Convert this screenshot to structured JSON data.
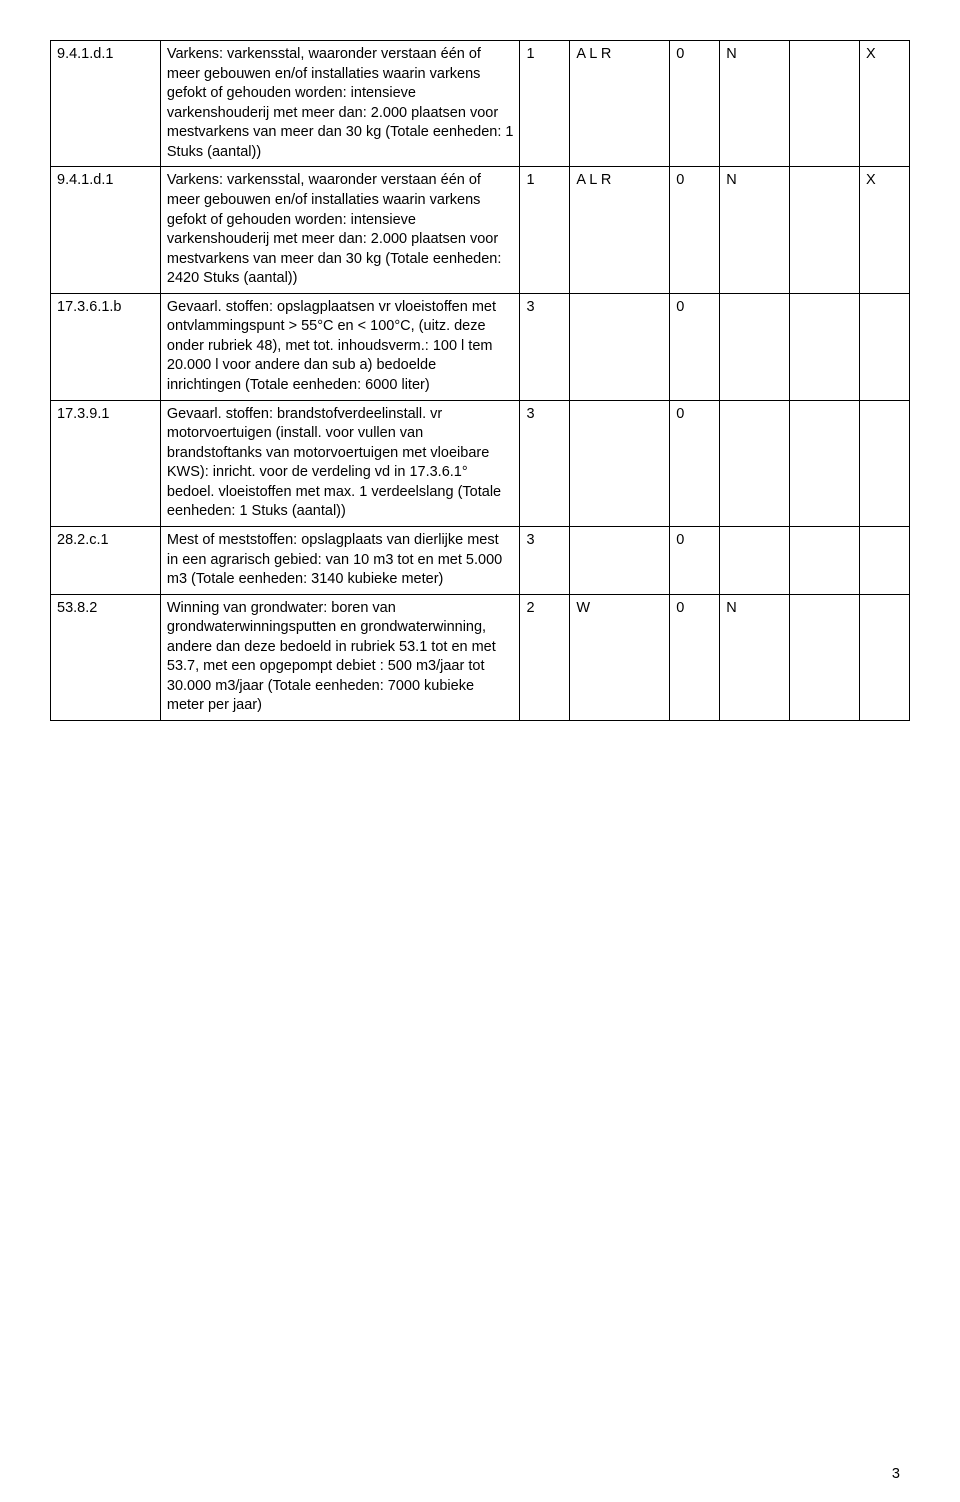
{
  "table": {
    "rows": [
      {
        "code": "9.4.1.d.1",
        "desc": "Varkens: varkensstal, waaronder verstaan één of meer gebouwen en/of installaties waarin varkens gefokt of gehouden worden: intensieve varkenshouderij met meer dan: 2.000 plaatsen voor mestvarkens van meer dan 30 kg (Totale eenheden: 1 Stuks (aantal))",
        "c3": "1",
        "c4": "A L R",
        "c5": "0",
        "c6": "N",
        "c7": "",
        "c8": "X"
      },
      {
        "code": "9.4.1.d.1",
        "desc": "Varkens: varkensstal, waaronder verstaan één of meer gebouwen en/of installaties waarin varkens gefokt of gehouden worden: intensieve varkenshouderij met meer dan: 2.000 plaatsen voor mestvarkens van meer dan 30 kg (Totale eenheden: 2420 Stuks (aantal))",
        "c3": "1",
        "c4": "A L R",
        "c5": "0",
        "c6": "N",
        "c7": "",
        "c8": "X"
      },
      {
        "code": "17.3.6.1.b",
        "desc": "Gevaarl. stoffen: opslagplaatsen vr vloeistoffen met ontvlammingspunt > 55°C en < 100°C, (uitz. deze onder rubriek 48), met tot. inhoudsverm.: 100 l tem 20.000 l voor andere dan sub a) bedoelde inrichtingen (Totale eenheden: 6000 liter)",
        "c3": "3",
        "c4": "",
        "c5": "0",
        "c6": "",
        "c7": "",
        "c8": ""
      },
      {
        "code": "17.3.9.1",
        "desc": "Gevaarl. stoffen: brandstofverdeelinstall. vr motorvoertuigen (install. voor vullen van brandstoftanks van motorvoertuigen met vloeibare KWS): inricht. voor de verdeling vd in 17.3.6.1° bedoel. vloeistoffen met max. 1 verdeelslang (Totale eenheden: 1 Stuks (aantal))",
        "c3": "3",
        "c4": "",
        "c5": "0",
        "c6": "",
        "c7": "",
        "c8": ""
      },
      {
        "code": "28.2.c.1",
        "desc": "Mest of meststoffen: opslagplaats van dierlijke mest in een agrarisch gebied: van 10 m3 tot en met 5.000 m3 (Totale eenheden: 3140 kubieke meter)",
        "c3": "3",
        "c4": "",
        "c5": "0",
        "c6": "",
        "c7": "",
        "c8": ""
      },
      {
        "code": "53.8.2",
        "desc": "Winning van grondwater: boren van grondwaterwinningsputten en grondwaterwinning, andere dan deze bedoeld in rubriek 53.1 tot en met 53.7, met een opgepompt debiet : 500 m3/jaar tot 30.000 m3/jaar (Totale eenheden: 7000 kubieke meter per jaar)",
        "c3": "2",
        "c4": "W",
        "c5": "0",
        "c6": "N",
        "c7": "",
        "c8": ""
      }
    ]
  },
  "page_number": "3"
}
